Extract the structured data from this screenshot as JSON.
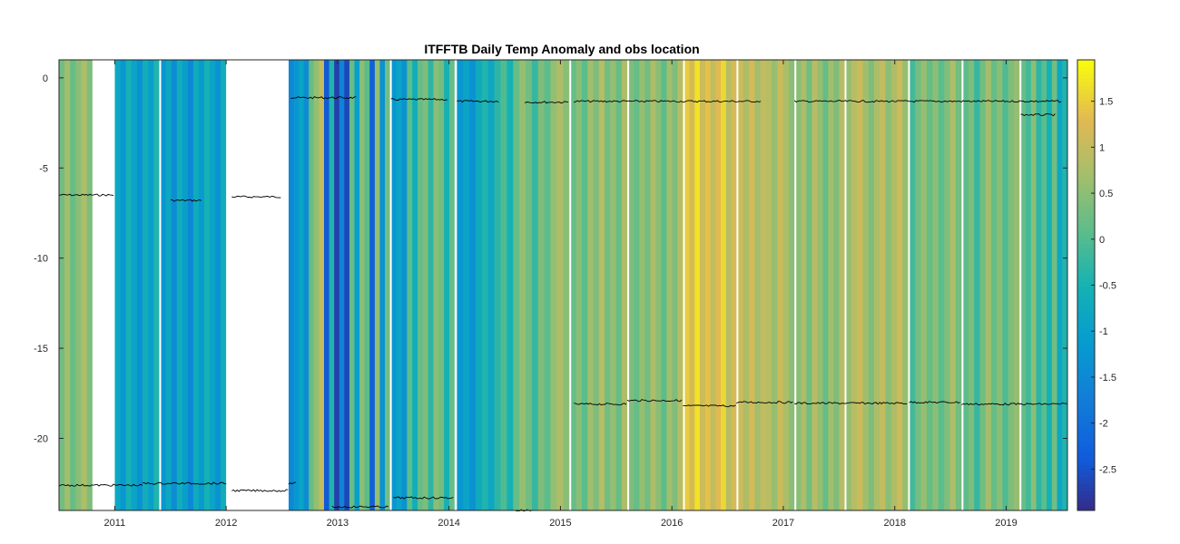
{
  "chart_data": {
    "type": "heatmap",
    "title": "ITFFTB Daily Temp Anomaly and obs location",
    "xlabel": "",
    "ylabel": "",
    "xlim": [
      2010.5,
      2019.55
    ],
    "ylim": [
      -24,
      1
    ],
    "x_ticks": [
      2011,
      2012,
      2013,
      2014,
      2015,
      2016,
      2017,
      2018,
      2019
    ],
    "x_tick_labels": [
      "2011",
      "2012",
      "2013",
      "2014",
      "2015",
      "2016",
      "2017",
      "2018",
      "2019"
    ],
    "y_ticks": [
      0,
      -5,
      -10,
      -15,
      -20
    ],
    "y_tick_labels": [
      "0",
      "-5",
      "-10",
      "-15",
      "-20"
    ],
    "colorbar": {
      "lim": [
        -2.95,
        1.95
      ],
      "ticks": [
        1.5,
        1,
        0.5,
        0,
        -0.5,
        -1,
        -1.5,
        -2,
        -2.5
      ],
      "tick_labels": [
        "1.5",
        "1",
        "0.5",
        "0",
        "-0.5",
        "-1",
        "-1.5",
        "-2",
        "-2.5"
      ],
      "colormap": "parula"
    },
    "gaps": [
      [
        2010.8,
        2011.0
      ],
      [
        2011.4,
        2011.41
      ],
      [
        2012.0,
        2012.56
      ],
      [
        2013.47,
        2013.48
      ],
      [
        2014.05,
        2014.07
      ],
      [
        2015.08,
        2015.09
      ],
      [
        2015.6,
        2015.61
      ],
      [
        2016.1,
        2016.11
      ],
      [
        2016.58,
        2016.59
      ],
      [
        2017.1,
        2017.11
      ],
      [
        2017.55,
        2017.56
      ],
      [
        2018.12,
        2018.13
      ],
      [
        2018.6,
        2018.61
      ],
      [
        2019.12,
        2019.13
      ]
    ],
    "anomaly_segments": [
      {
        "x0": 2010.5,
        "x1": 2010.8,
        "v": [
          0.3,
          0.7,
          0.2,
          0.5,
          0.8,
          0.4
        ]
      },
      {
        "x0": 2011.0,
        "x1": 2011.4,
        "v": [
          -0.8,
          -1.2,
          -0.5,
          -0.9,
          -1.3,
          -0.6,
          -1.0,
          -0.4
        ]
      },
      {
        "x0": 2011.41,
        "x1": 2012.0,
        "v": [
          -1.2,
          -0.8,
          -1.4,
          -0.6,
          -1.0,
          -1.5,
          -0.7,
          -1.1,
          -0.5,
          -0.9,
          -1.3,
          -0.6
        ]
      },
      {
        "x0": 2012.56,
        "x1": 2013.47,
        "v": [
          -1.5,
          -1.2,
          -0.9,
          -1.4,
          0.2,
          0.6,
          1.0,
          -2.4,
          -0.4,
          -2.7,
          -1.6,
          -2.6,
          0.2,
          -1.0,
          0.5,
          0.1,
          -2.3,
          0.6,
          -1.3,
          0.3
        ]
      },
      {
        "x0": 2013.48,
        "x1": 2014.05,
        "v": [
          -1.2,
          -0.9,
          -1.3,
          0.1,
          -0.6,
          0.2,
          0.4,
          -0.3,
          0.5,
          0.3,
          -0.5,
          0.2
        ]
      },
      {
        "x0": 2014.07,
        "x1": 2015.08,
        "v": [
          -1.2,
          -0.9,
          -1.3,
          -0.7,
          -0.4,
          -0.8,
          -0.3,
          0.0,
          -0.5,
          0.2,
          0.6,
          0.3,
          -0.2,
          0.4,
          0.1,
          0.6,
          0.8,
          0.5
        ]
      },
      {
        "x0": 2015.09,
        "x1": 2015.6,
        "v": [
          0.2,
          0.5,
          0.1,
          0.7,
          0.4,
          0.9,
          0.3,
          0.6,
          0.2,
          0.8
        ]
      },
      {
        "x0": 2015.61,
        "x1": 2016.1,
        "v": [
          0.4,
          0.2,
          0.6,
          0.3,
          0.8,
          0.5,
          0.1,
          0.7,
          0.4,
          0.9
        ]
      },
      {
        "x0": 2016.11,
        "x1": 2016.58,
        "v": [
          1.5,
          1.2,
          1.7,
          1.1,
          1.4,
          1.0,
          1.3,
          1.6,
          0.9,
          1.2
        ]
      },
      {
        "x0": 2016.59,
        "x1": 2017.1,
        "v": [
          1.1,
          0.8,
          1.2,
          0.7,
          1.0,
          0.9,
          0.6,
          1.1,
          0.8,
          0.5
        ]
      },
      {
        "x0": 2017.11,
        "x1": 2017.55,
        "v": [
          0.5,
          0.8,
          0.3,
          0.9,
          0.6,
          0.2,
          0.7,
          0.4,
          0.9
        ]
      },
      {
        "x0": 2017.56,
        "x1": 2018.12,
        "v": [
          0.6,
          0.9,
          1.1,
          0.7,
          0.4,
          0.8,
          1.0,
          0.5,
          0.8,
          1.1,
          0.6
        ]
      },
      {
        "x0": 2018.13,
        "x1": 2018.6,
        "v": [
          -0.1,
          0.3,
          0.6,
          0.2,
          0.5,
          0.1,
          0.4,
          0.8,
          0.3
        ]
      },
      {
        "x0": 2018.61,
        "x1": 2019.12,
        "v": [
          0.1,
          0.4,
          -0.2,
          0.3,
          0.7,
          0.2,
          0.5,
          0.0,
          0.4,
          0.6
        ]
      },
      {
        "x0": 2019.13,
        "x1": 2019.55,
        "v": [
          0.2,
          -0.1,
          0.5,
          -0.3,
          0.1,
          -0.5,
          0.3,
          -0.8,
          -0.4
        ]
      }
    ],
    "obs_series": [
      {
        "x0": 2010.5,
        "x1": 2011.0,
        "y": -6.5
      },
      {
        "x0": 2011.5,
        "x1": 2011.78,
        "y": -6.8
      },
      {
        "x0": 2012.05,
        "x1": 2012.5,
        "y": -6.6
      },
      {
        "x0": 2012.58,
        "x1": 2013.18,
        "y": -1.1
      },
      {
        "x0": 2013.48,
        "x1": 2014.0,
        "y": -1.2
      },
      {
        "x0": 2014.07,
        "x1": 2014.45,
        "y": -1.3
      },
      {
        "x0": 2014.68,
        "x1": 2015.08,
        "y": -1.35
      },
      {
        "x0": 2015.12,
        "x1": 2016.8,
        "y": -1.3
      },
      {
        "x0": 2017.1,
        "x1": 2019.5,
        "y": -1.3
      },
      {
        "x0": 2019.13,
        "x1": 2019.45,
        "y": -2.05
      },
      {
        "x0": 2015.12,
        "x1": 2015.6,
        "y": -18.1
      },
      {
        "x0": 2015.6,
        "x1": 2016.1,
        "y": -17.9
      },
      {
        "x0": 2016.1,
        "x1": 2016.58,
        "y": -18.2
      },
      {
        "x0": 2016.58,
        "x1": 2017.1,
        "y": -18.0
      },
      {
        "x0": 2017.1,
        "x1": 2018.12,
        "y": -18.05
      },
      {
        "x0": 2018.13,
        "x1": 2018.6,
        "y": -18.0
      },
      {
        "x0": 2018.6,
        "x1": 2019.55,
        "y": -18.1
      },
      {
        "x0": 2010.5,
        "x1": 2011.25,
        "y": -22.6
      },
      {
        "x0": 2011.25,
        "x1": 2012.0,
        "y": -22.5
      },
      {
        "x0": 2012.05,
        "x1": 2012.56,
        "y": -22.9
      },
      {
        "x0": 2012.56,
        "x1": 2012.63,
        "y": -22.5
      },
      {
        "x0": 2012.95,
        "x1": 2013.47,
        "y": -23.8
      },
      {
        "x0": 2013.5,
        "x1": 2014.05,
        "y": -23.3
      },
      {
        "x0": 2014.6,
        "x1": 2014.75,
        "y": -24.0
      }
    ]
  }
}
